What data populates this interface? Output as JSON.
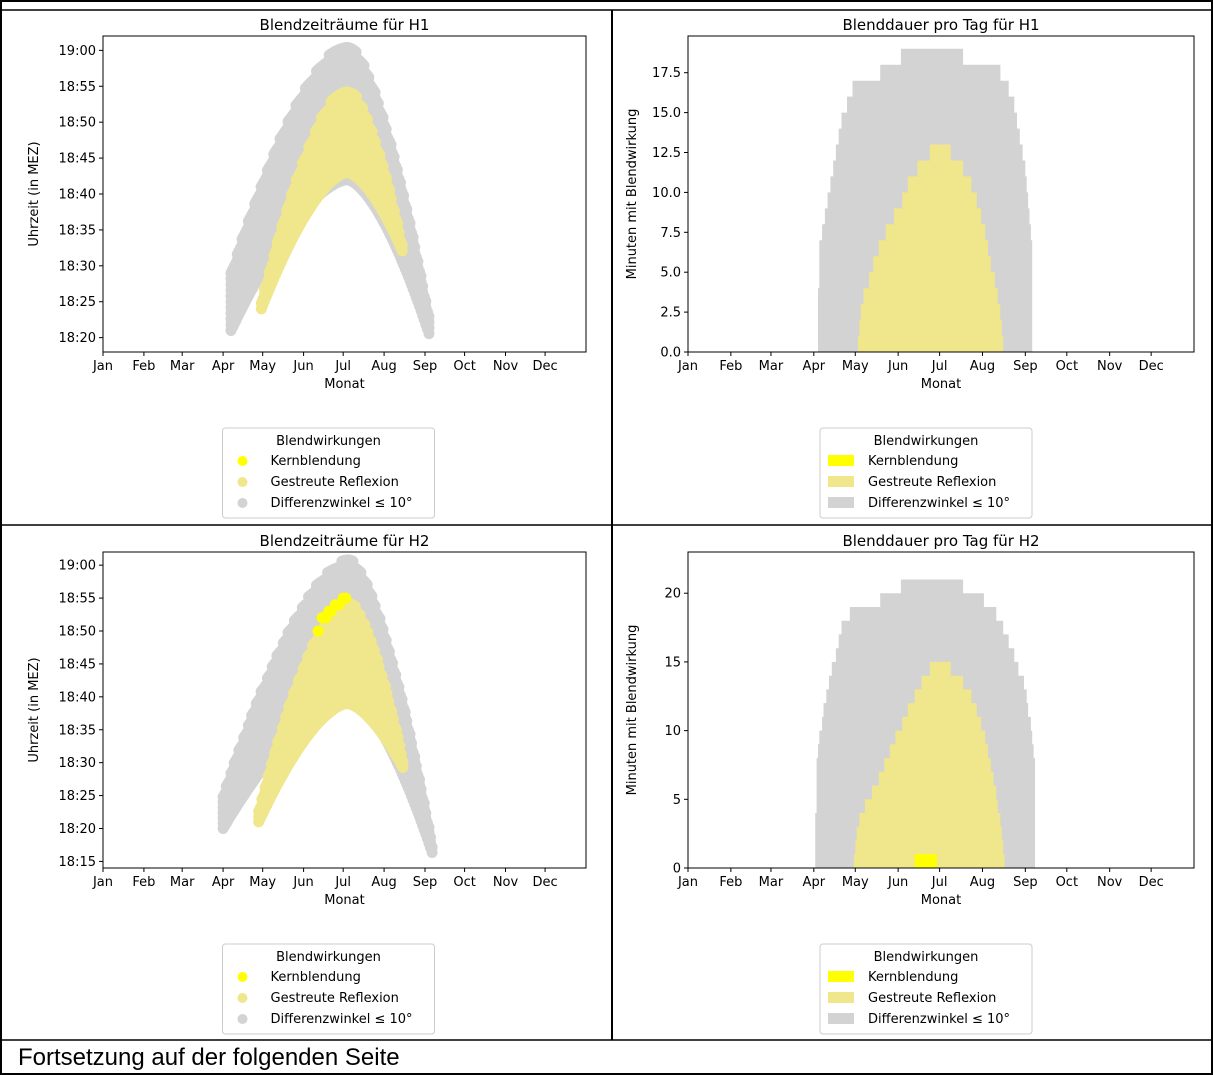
{
  "footer": "Fortsetzung auf der folgenden Seite",
  "colors": {
    "kern": "#ffff00",
    "gestreut": "#f0e68c",
    "differenz": "#d3d3d3",
    "axis": "#000000"
  },
  "chart_data": [
    {
      "type": "scatter",
      "title": "Blendzeiträume für H1",
      "xlabel": "Monat",
      "ylabel": "Uhrzeit (in MEZ)",
      "categories": [
        "Jan",
        "Feb",
        "Mar",
        "Apr",
        "May",
        "Jun",
        "Jul",
        "Aug",
        "Sep",
        "Oct",
        "Nov",
        "Dec"
      ],
      "yticks": [
        "18:20",
        "18:25",
        "18:30",
        "18:35",
        "18:40",
        "18:45",
        "18:50",
        "18:55",
        "19:00"
      ],
      "ylim": [
        "18:18",
        "19:02"
      ],
      "legend": {
        "title": "Blendwirkungen",
        "placement": "below",
        "entries": [
          "Kernblendung",
          "Gestreute Reflexion",
          "Differenzwinkel ≤  10°"
        ]
      },
      "series": [
        {
          "name": "Differenzwinkel ≤  10°",
          "color": "#d3d3d3",
          "band": {
            "start": "2024-04-07",
            "end": "2024-09-05",
            "peak": "2024-07-04",
            "upper_start": "18:29",
            "upper_peak": "19:01",
            "upper_end": "18:22",
            "lower_start": "18:21",
            "lower_peak": "18:42",
            "lower_end": "18:20"
          }
        },
        {
          "name": "Gestreute Reflexion",
          "color": "#f0e68c",
          "band": {
            "start": "2024-04-30",
            "end": "2024-08-15",
            "peak": "2024-07-04",
            "upper_start": "18:25",
            "upper_peak": "18:55",
            "upper_end": "18:33",
            "lower_start": "18:24",
            "lower_peak": "18:43",
            "lower_end": "18:32"
          }
        }
      ]
    },
    {
      "type": "area",
      "title": "Blenddauer pro Tag für H1",
      "xlabel": "Monat",
      "ylabel": "Minuten mit Blendwirkung",
      "categories": [
        "Jan",
        "Feb",
        "Mar",
        "Apr",
        "May",
        "Jun",
        "Jul",
        "Aug",
        "Sep",
        "Oct",
        "Nov",
        "Dec"
      ],
      "yticks": [
        "0.0",
        "2.5",
        "5.0",
        "7.5",
        "10.0",
        "12.5",
        "15.0",
        "17.5"
      ],
      "ylim": [
        0,
        19.8
      ],
      "legend": {
        "title": "Blendwirkungen",
        "placement": "below",
        "entries": [
          "Kernblendung",
          "Gestreute Reflexion",
          "Differenzwinkel ≤  10°"
        ]
      },
      "series": [
        {
          "name": "Differenzwinkel ≤  10°",
          "color": "#d3d3d3",
          "x": [
            "2024-04-03",
            "2024-04-05",
            "2024-04-10",
            "2024-04-15",
            "2024-04-22",
            "2024-05-01",
            "2024-05-12",
            "2024-05-26",
            "2024-06-10",
            "2024-06-25",
            "2024-07-10",
            "2024-07-25",
            "2024-08-08",
            "2024-08-18",
            "2024-08-25",
            "2024-09-01",
            "2024-09-05",
            "2024-09-06"
          ],
          "values": [
            0,
            7,
            9,
            12,
            15,
            17,
            17,
            18,
            19,
            19,
            19,
            18,
            18,
            17,
            15,
            11,
            7,
            0
          ]
        },
        {
          "name": "Gestreute Reflexion",
          "color": "#f0e68c",
          "x": [
            "2024-05-02",
            "2024-05-05",
            "2024-05-12",
            "2024-05-20",
            "2024-06-01",
            "2024-06-10",
            "2024-06-20",
            "2024-06-28",
            "2024-07-05",
            "2024-07-12",
            "2024-07-22",
            "2024-08-01",
            "2024-08-08",
            "2024-08-14",
            "2024-08-16"
          ],
          "values": [
            0,
            3,
            5,
            7,
            9,
            11,
            12,
            13,
            13,
            12,
            11,
            8,
            5,
            2,
            0
          ]
        }
      ]
    },
    {
      "type": "scatter",
      "title": "Blendzeiträume für H2",
      "xlabel": "Monat",
      "ylabel": "Uhrzeit (in MEZ)",
      "categories": [
        "Jan",
        "Feb",
        "Mar",
        "Apr",
        "May",
        "Jun",
        "Jul",
        "Aug",
        "Sep",
        "Oct",
        "Nov",
        "Dec"
      ],
      "yticks": [
        "18:15",
        "18:20",
        "18:25",
        "18:30",
        "18:35",
        "18:40",
        "18:45",
        "18:50",
        "18:55",
        "19:00"
      ],
      "ylim": [
        "18:14",
        "19:02"
      ],
      "legend": {
        "title": "Blendwirkungen",
        "placement": "below",
        "entries": [
          "Kernblendung",
          "Gestreute Reflexion",
          "Differenzwinkel ≤  10°"
        ]
      },
      "series": [
        {
          "name": "Differenzwinkel ≤  10°",
          "color": "#d3d3d3",
          "band": {
            "start": "2024-04-01",
            "end": "2024-09-07",
            "peak": "2024-07-05",
            "upper_start": "18:25",
            "upper_peak": "19:01",
            "upper_end": "18:17",
            "lower_start": "18:20",
            "lower_peak": "18:40",
            "lower_end": "18:16"
          }
        },
        {
          "name": "Gestreute Reflexion",
          "color": "#f0e68c",
          "band": {
            "start": "2024-04-28",
            "end": "2024-08-16",
            "peak": "2024-07-04",
            "upper_start": "18:23",
            "upper_peak": "18:55",
            "upper_end": "18:30",
            "lower_start": "18:21",
            "lower_peak": "18:39",
            "lower_end": "18:29"
          }
        },
        {
          "name": "Kernblendung",
          "color": "#ffff00",
          "x": [
            "2024-06-12",
            "2024-06-15",
            "2024-06-18",
            "2024-06-20",
            "2024-06-22",
            "2024-06-25",
            "2024-06-28",
            "2024-07-01",
            "2024-07-03"
          ],
          "values": [
            "18:50",
            "18:52",
            "18:52",
            "18:53",
            "18:53",
            "18:54",
            "18:54",
            "18:55",
            "18:55"
          ]
        }
      ]
    },
    {
      "type": "area",
      "title": "Blenddauer pro Tag für H2",
      "xlabel": "Monat",
      "ylabel": "Minuten mit Blendwirkung",
      "categories": [
        "Jan",
        "Feb",
        "Mar",
        "Apr",
        "May",
        "Jun",
        "Jul",
        "Aug",
        "Sep",
        "Oct",
        "Nov",
        "Dec"
      ],
      "yticks": [
        "0",
        "5",
        "10",
        "15",
        "20"
      ],
      "ylim": [
        0,
        23
      ],
      "legend": {
        "title": "Blendwirkungen",
        "placement": "below",
        "entries": [
          "Kernblendung",
          "Gestreute Reflexion",
          "Differenzwinkel ≤  10°"
        ]
      },
      "series": [
        {
          "name": "Differenzwinkel ≤  10°",
          "color": "#d3d3d3",
          "x": [
            "2024-04-01",
            "2024-04-03",
            "2024-04-08",
            "2024-04-15",
            "2024-04-22",
            "2024-05-01",
            "2024-05-12",
            "2024-05-26",
            "2024-06-10",
            "2024-06-25",
            "2024-07-10",
            "2024-07-25",
            "2024-08-08",
            "2024-08-18",
            "2024-08-25",
            "2024-09-01",
            "2024-09-07",
            "2024-09-08"
          ],
          "values": [
            0,
            8,
            12,
            15,
            18,
            19,
            19,
            20,
            21,
            21,
            21,
            20,
            19,
            17,
            15,
            13,
            8,
            0
          ]
        },
        {
          "name": "Gestreute Reflexion",
          "color": "#f0e68c",
          "x": [
            "2024-04-29",
            "2024-05-02",
            "2024-05-10",
            "2024-05-20",
            "2024-06-01",
            "2024-06-10",
            "2024-06-20",
            "2024-06-28",
            "2024-07-05",
            "2024-07-12",
            "2024-07-22",
            "2024-08-01",
            "2024-08-08",
            "2024-08-14",
            "2024-08-17"
          ],
          "values": [
            0,
            3,
            5,
            7,
            10,
            12,
            14,
            15,
            15,
            14,
            13,
            10,
            7,
            3,
            0
          ]
        },
        {
          "name": "Kernblendung",
          "color": "#ffff00",
          "x": [
            "2024-06-12",
            "2024-06-13",
            "2024-06-28",
            "2024-06-29"
          ],
          "values": [
            0,
            1,
            1,
            0
          ]
        }
      ]
    }
  ]
}
